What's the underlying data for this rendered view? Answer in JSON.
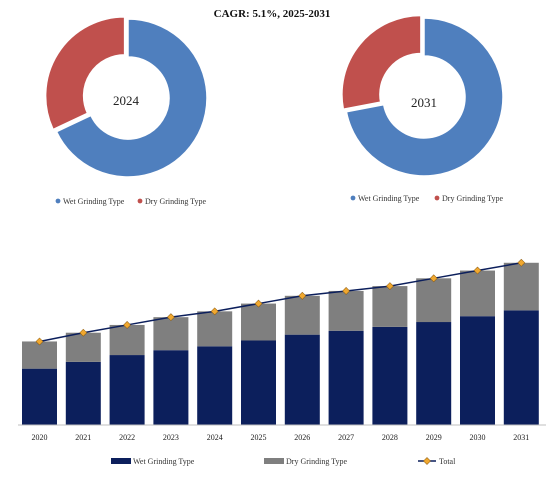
{
  "chart_data": [
    {
      "type": "pie",
      "title": "CAGR: 5.1%, 2025-2031",
      "center_label": "2024",
      "categories": [
        "Wet Grinding Type",
        "Dry Grinding Type"
      ],
      "values": [
        68,
        32
      ],
      "colors": [
        "#4f7fbe",
        "#c0504d"
      ],
      "legend_position": "bottom"
    },
    {
      "type": "pie",
      "center_label": "2031",
      "categories": [
        "Wet Grinding Type",
        "Dry Grinding Type"
      ],
      "values": [
        72,
        28
      ],
      "colors": [
        "#4f7fbe",
        "#c0504d"
      ],
      "legend_position": "bottom"
    },
    {
      "type": "bar",
      "stacked": true,
      "categories": [
        "2020",
        "2021",
        "2022",
        "2023",
        "2024",
        "2025",
        "2026",
        "2027",
        "2028",
        "2029",
        "2030",
        "2031"
      ],
      "series": [
        {
          "name": "Wet Grinding Type",
          "values": [
            58,
            65,
            72,
            77,
            81,
            87,
            93,
            97,
            101,
            106,
            112,
            118
          ],
          "color": "#0c1f5c"
        },
        {
          "name": "Dry Grinding Type",
          "values": [
            28,
            30,
            31,
            34,
            36,
            38,
            40,
            41,
            42,
            45,
            47,
            49
          ],
          "color": "#7f7f7f"
        }
      ],
      "line": {
        "name": "Total",
        "values": [
          86,
          95,
          103,
          111,
          117,
          125,
          133,
          138,
          143,
          151,
          159,
          167
        ],
        "color": "#0c1f5c",
        "marker_color": "#f0a830"
      },
      "ylim": [
        0,
        175
      ],
      "grid": false,
      "legend_position": "bottom"
    }
  ]
}
